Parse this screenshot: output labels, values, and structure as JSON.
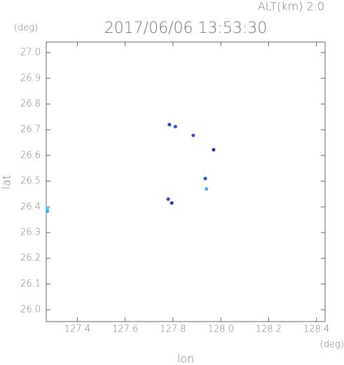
{
  "chart_data": {
    "type": "scatter",
    "title": "2017/06/06 13:53:30",
    "subtitle": "ALT(km) 2.0",
    "y_unit": "(deg)",
    "x_unit": "(deg)",
    "x_label": "lon",
    "y_label": "lat",
    "xlim": [
      127.27,
      128.436
    ],
    "ylim": [
      25.954,
      27.041
    ],
    "xticks": [
      127.4,
      127.6,
      127.8,
      {
        "value": 128.0,
        "label": "128.0"
      },
      128.2,
      128.4
    ],
    "yticks": [
      {
        "value": 26.0,
        "label": "26.0"
      },
      26.1,
      26.2,
      26.3,
      26.4,
      26.5,
      26.6,
      26.7,
      26.8,
      26.9,
      {
        "value": 27.0,
        "label": "27.0"
      }
    ],
    "x": [
      127.275,
      127.275,
      127.81,
      127.785,
      127.885,
      127.97,
      127.94,
      127.935,
      127.78,
      127.795
    ],
    "values": [
      26.395,
      26.383,
      26.712,
      26.72,
      26.678,
      26.622,
      26.47,
      26.51,
      26.43,
      26.415
    ],
    "colors": [
      "#40c8ff",
      "#3aa8f0",
      "#2f4fd8",
      "#2a40c0",
      "#3050d0",
      "#203090",
      "#45a8f5",
      "#2050d0",
      "#2c48c8",
      "#2038b0"
    ]
  }
}
